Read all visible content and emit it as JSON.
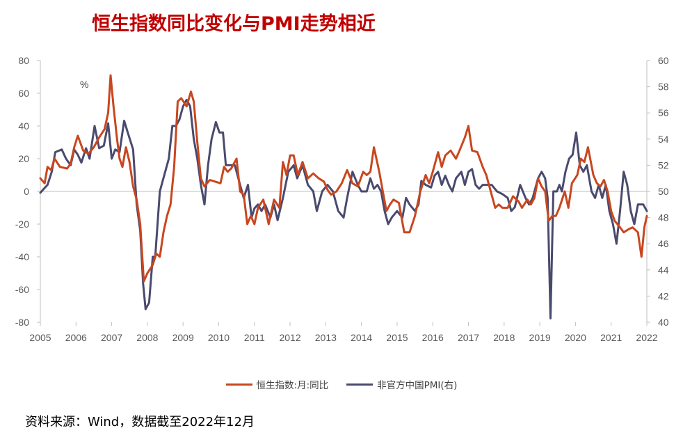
{
  "title": "恒生指数同比变化与PMI走势相近",
  "source": "资料来源：Wind，数据截至2022年12月",
  "colors": {
    "hsi": "#c9461e",
    "pmi": "#4a4a6e",
    "axis": "#bfbfbf",
    "title": "#c00000"
  },
  "chart_data": {
    "type": "line",
    "title": "恒生指数同比变化与PMI走势相近",
    "left_unit": "%",
    "y_left": {
      "range": [
        -80,
        80
      ],
      "ticks": [
        "80",
        "60",
        "40",
        "20",
        "0",
        "-20",
        "-40",
        "-60",
        "-80"
      ]
    },
    "y_right": {
      "range": [
        40,
        60
      ],
      "ticks": [
        "60",
        "58",
        "56",
        "54",
        "52",
        "50",
        "48",
        "46",
        "44",
        "42",
        "40"
      ]
    },
    "x_ticks": [
      "2005",
      "2006",
      "2007",
      "2008",
      "2009",
      "2010",
      "2011",
      "2012",
      "2013",
      "2014",
      "2015",
      "2016",
      "2017",
      "2018",
      "2019",
      "2020",
      "2021",
      "2022"
    ],
    "x_range": [
      2005.0,
      2022.0
    ],
    "legend_position": "bottom",
    "grid": false,
    "series": [
      {
        "name": "恒生指数:月:同比",
        "axis": "left",
        "points": [
          [
            2005.0,
            8
          ],
          [
            2005.12,
            5
          ],
          [
            2005.2,
            15
          ],
          [
            2005.3,
            13
          ],
          [
            2005.4,
            20
          ],
          [
            2005.55,
            15
          ],
          [
            2005.75,
            14
          ],
          [
            2005.85,
            17
          ],
          [
            2005.95,
            27
          ],
          [
            2006.05,
            34
          ],
          [
            2006.2,
            25
          ],
          [
            2006.35,
            23
          ],
          [
            2006.5,
            27
          ],
          [
            2006.65,
            33
          ],
          [
            2006.8,
            38
          ],
          [
            2006.9,
            48
          ],
          [
            2006.97,
            71
          ],
          [
            2007.05,
            52
          ],
          [
            2007.15,
            32
          ],
          [
            2007.22,
            20
          ],
          [
            2007.3,
            15
          ],
          [
            2007.4,
            27
          ],
          [
            2007.5,
            18
          ],
          [
            2007.6,
            3
          ],
          [
            2007.7,
            -5
          ],
          [
            2007.8,
            -20
          ],
          [
            2007.9,
            -55
          ],
          [
            2008.0,
            -50
          ],
          [
            2008.15,
            -45
          ],
          [
            2008.25,
            -38
          ],
          [
            2008.35,
            -40
          ],
          [
            2008.45,
            -25
          ],
          [
            2008.55,
            -15
          ],
          [
            2008.65,
            -8
          ],
          [
            2008.75,
            15
          ],
          [
            2008.85,
            55
          ],
          [
            2008.95,
            57
          ],
          [
            2009.1,
            52
          ],
          [
            2009.22,
            61
          ],
          [
            2009.3,
            55
          ],
          [
            2009.4,
            30
          ],
          [
            2009.5,
            8
          ],
          [
            2009.6,
            3
          ],
          [
            2009.75,
            7
          ],
          [
            2009.9,
            6
          ],
          [
            2010.05,
            5
          ],
          [
            2010.15,
            15
          ],
          [
            2010.25,
            12
          ],
          [
            2010.35,
            14
          ],
          [
            2010.5,
            20
          ],
          [
            2010.6,
            0
          ],
          [
            2010.7,
            -2
          ],
          [
            2010.8,
            -20
          ],
          [
            2010.9,
            -15
          ],
          [
            2011.0,
            -20
          ],
          [
            2011.1,
            -10
          ],
          [
            2011.25,
            -5
          ],
          [
            2011.4,
            -20
          ],
          [
            2011.55,
            -5
          ],
          [
            2011.7,
            -10
          ],
          [
            2011.8,
            18
          ],
          [
            2011.9,
            10
          ],
          [
            2012.0,
            22
          ],
          [
            2012.1,
            22
          ],
          [
            2012.22,
            10
          ],
          [
            2012.35,
            18
          ],
          [
            2012.5,
            8
          ],
          [
            2012.65,
            11
          ],
          [
            2012.8,
            8
          ],
          [
            2012.95,
            6
          ],
          [
            2013.05,
            1
          ],
          [
            2013.15,
            -2
          ],
          [
            2013.3,
            0
          ],
          [
            2013.45,
            5
          ],
          [
            2013.6,
            13
          ],
          [
            2013.75,
            5
          ],
          [
            2013.9,
            3
          ],
          [
            2014.05,
            12
          ],
          [
            2014.15,
            10
          ],
          [
            2014.25,
            12
          ],
          [
            2014.35,
            27
          ],
          [
            2014.5,
            12
          ],
          [
            2014.6,
            0
          ],
          [
            2014.7,
            -12
          ],
          [
            2014.8,
            -8
          ],
          [
            2014.9,
            -5
          ],
          [
            2015.05,
            -7
          ],
          [
            2015.2,
            -25
          ],
          [
            2015.35,
            -25
          ],
          [
            2015.5,
            -15
          ],
          [
            2015.65,
            0
          ],
          [
            2015.8,
            10
          ],
          [
            2015.9,
            5
          ],
          [
            2016.0,
            12
          ],
          [
            2016.15,
            24
          ],
          [
            2016.25,
            15
          ],
          [
            2016.35,
            22
          ],
          [
            2016.5,
            25
          ],
          [
            2016.65,
            20
          ],
          [
            2016.75,
            25
          ],
          [
            2016.9,
            33
          ],
          [
            2017.0,
            40
          ],
          [
            2017.1,
            25
          ],
          [
            2017.25,
            24
          ],
          [
            2017.4,
            15
          ],
          [
            2017.5,
            10
          ],
          [
            2017.6,
            2
          ],
          [
            2017.75,
            -10
          ],
          [
            2017.85,
            -8
          ],
          [
            2017.95,
            -10
          ],
          [
            2018.1,
            -10
          ],
          [
            2018.25,
            -3
          ],
          [
            2018.4,
            -6
          ],
          [
            2018.5,
            -10
          ],
          [
            2018.65,
            -5
          ],
          [
            2018.75,
            -8
          ],
          [
            2018.85,
            -4
          ],
          [
            2018.95,
            8
          ],
          [
            2019.05,
            3
          ],
          [
            2019.15,
            0
          ],
          [
            2019.25,
            -18
          ],
          [
            2019.35,
            -15
          ],
          [
            2019.45,
            -15
          ],
          [
            2019.55,
            -10
          ],
          [
            2019.7,
            0
          ],
          [
            2019.8,
            -10
          ],
          [
            2019.9,
            5
          ],
          [
            2020.05,
            10
          ],
          [
            2020.15,
            20
          ],
          [
            2020.25,
            18
          ],
          [
            2020.35,
            27
          ],
          [
            2020.5,
            10
          ],
          [
            2020.6,
            5
          ],
          [
            2020.7,
            3
          ],
          [
            2020.8,
            7
          ],
          [
            2020.9,
            0
          ],
          [
            2021.0,
            -12
          ],
          [
            2021.1,
            -18
          ],
          [
            2021.25,
            -22
          ],
          [
            2021.35,
            -25
          ],
          [
            2021.5,
            -23
          ],
          [
            2021.6,
            -22
          ],
          [
            2021.75,
            -25
          ],
          [
            2021.85,
            -40
          ],
          [
            2021.93,
            -22
          ],
          [
            2022.0,
            -15
          ]
        ]
      },
      {
        "name": "非官方中国PMI(右)",
        "axis": "right",
        "points": [
          [
            2005.0,
            49.9
          ],
          [
            2005.1,
            50.2
          ],
          [
            2005.2,
            50.5
          ],
          [
            2005.32,
            51.5
          ],
          [
            2005.42,
            53.0
          ],
          [
            2005.6,
            53.2
          ],
          [
            2005.72,
            52.5
          ],
          [
            2005.85,
            52.0
          ],
          [
            2005.95,
            53.2
          ],
          [
            2006.05,
            52.8
          ],
          [
            2006.15,
            52.2
          ],
          [
            2006.28,
            53.3
          ],
          [
            2006.38,
            52.5
          ],
          [
            2006.52,
            55.0
          ],
          [
            2006.65,
            53.3
          ],
          [
            2006.78,
            53.5
          ],
          [
            2006.9,
            55.2
          ],
          [
            2007.0,
            52.5
          ],
          [
            2007.1,
            53.2
          ],
          [
            2007.22,
            53.0
          ],
          [
            2007.35,
            55.4
          ],
          [
            2007.45,
            54.5
          ],
          [
            2007.6,
            53.2
          ],
          [
            2007.7,
            49.0
          ],
          [
            2007.8,
            47.0
          ],
          [
            2007.88,
            43.0
          ],
          [
            2007.95,
            41.0
          ],
          [
            2008.05,
            41.5
          ],
          [
            2008.15,
            45.0
          ],
          [
            2008.22,
            45.0
          ],
          [
            2008.35,
            50.0
          ],
          [
            2008.5,
            51.5
          ],
          [
            2008.6,
            52.5
          ],
          [
            2008.7,
            55.0
          ],
          [
            2008.8,
            55.0
          ],
          [
            2008.9,
            55.5
          ],
          [
            2009.0,
            56.5
          ],
          [
            2009.1,
            57.0
          ],
          [
            2009.2,
            56.5
          ],
          [
            2009.3,
            54.0
          ],
          [
            2009.4,
            52.5
          ],
          [
            2009.5,
            50.5
          ],
          [
            2009.6,
            49.0
          ],
          [
            2009.7,
            52.0
          ],
          [
            2009.8,
            54.0
          ],
          [
            2009.92,
            55.3
          ],
          [
            2010.02,
            54.5
          ],
          [
            2010.12,
            54.5
          ],
          [
            2010.2,
            52.0
          ],
          [
            2010.3,
            52.0
          ],
          [
            2010.45,
            52.0
          ],
          [
            2010.6,
            50.5
          ],
          [
            2010.7,
            49.5
          ],
          [
            2010.82,
            50.5
          ],
          [
            2010.92,
            48.0
          ],
          [
            2011.0,
            48.7
          ],
          [
            2011.1,
            49.0
          ],
          [
            2011.2,
            48.5
          ],
          [
            2011.3,
            49.0
          ],
          [
            2011.45,
            48.0
          ],
          [
            2011.55,
            49.0
          ],
          [
            2011.65,
            47.8
          ],
          [
            2011.8,
            49.5
          ],
          [
            2011.95,
            51.5
          ],
          [
            2012.1,
            52.0
          ],
          [
            2012.2,
            51.0
          ],
          [
            2012.35,
            52.0
          ],
          [
            2012.5,
            50.5
          ],
          [
            2012.65,
            50.0
          ],
          [
            2012.75,
            48.5
          ],
          [
            2012.9,
            50.0
          ],
          [
            2013.05,
            50.5
          ],
          [
            2013.2,
            50.0
          ],
          [
            2013.35,
            48.5
          ],
          [
            2013.5,
            48.0
          ],
          [
            2013.6,
            49.5
          ],
          [
            2013.75,
            51.5
          ],
          [
            2013.9,
            50.5
          ],
          [
            2014.0,
            50.0
          ],
          [
            2014.15,
            50.0
          ],
          [
            2014.25,
            51.0
          ],
          [
            2014.35,
            50.2
          ],
          [
            2014.45,
            50.5
          ],
          [
            2014.55,
            50.0
          ],
          [
            2014.65,
            48.5
          ],
          [
            2014.75,
            47.5
          ],
          [
            2014.85,
            48.0
          ],
          [
            2015.0,
            48.5
          ],
          [
            2015.15,
            48.0
          ],
          [
            2015.25,
            49.5
          ],
          [
            2015.35,
            49.0
          ],
          [
            2015.5,
            48.5
          ],
          [
            2015.6,
            49.0
          ],
          [
            2015.68,
            50.8
          ],
          [
            2015.8,
            50.5
          ],
          [
            2015.95,
            50.3
          ],
          [
            2016.05,
            51.2
          ],
          [
            2016.15,
            51.5
          ],
          [
            2016.25,
            50.5
          ],
          [
            2016.35,
            51.2
          ],
          [
            2016.45,
            50.5
          ],
          [
            2016.55,
            50.0
          ],
          [
            2016.65,
            51.0
          ],
          [
            2016.8,
            51.5
          ],
          [
            2016.9,
            50.5
          ],
          [
            2017.0,
            51.5
          ],
          [
            2017.1,
            51.7
          ],
          [
            2017.2,
            50.5
          ],
          [
            2017.3,
            50.2
          ],
          [
            2017.4,
            50.5
          ],
          [
            2017.5,
            50.5
          ],
          [
            2017.65,
            50.5
          ],
          [
            2017.8,
            50.0
          ],
          [
            2017.95,
            49.8
          ],
          [
            2018.1,
            49.5
          ],
          [
            2018.2,
            48.5
          ],
          [
            2018.3,
            48.8
          ],
          [
            2018.45,
            50.5
          ],
          [
            2018.6,
            49.5
          ],
          [
            2018.7,
            49.0
          ],
          [
            2018.8,
            49.5
          ],
          [
            2018.95,
            51.0
          ],
          [
            2019.05,
            51.5
          ],
          [
            2019.15,
            51.0
          ],
          [
            2019.22,
            49.5
          ],
          [
            2019.3,
            40.3
          ],
          [
            2019.38,
            50.0
          ],
          [
            2019.48,
            50.0
          ],
          [
            2019.55,
            50.5
          ],
          [
            2019.62,
            50.0
          ],
          [
            2019.72,
            51.5
          ],
          [
            2019.82,
            52.5
          ],
          [
            2019.92,
            52.8
          ],
          [
            2020.02,
            54.5
          ],
          [
            2020.12,
            52.0
          ],
          [
            2020.22,
            51.5
          ],
          [
            2020.32,
            52.0
          ],
          [
            2020.45,
            50.0
          ],
          [
            2020.55,
            49.5
          ],
          [
            2020.65,
            50.5
          ],
          [
            2020.75,
            49.5
          ],
          [
            2020.85,
            50.5
          ],
          [
            2020.95,
            48.5
          ],
          [
            2021.05,
            47.5
          ],
          [
            2021.15,
            46.0
          ],
          [
            2021.25,
            48.5
          ],
          [
            2021.35,
            51.5
          ],
          [
            2021.45,
            50.5
          ],
          [
            2021.55,
            48.5
          ],
          [
            2021.65,
            47.5
          ],
          [
            2021.75,
            49.0
          ],
          [
            2021.9,
            49.0
          ],
          [
            2022.0,
            48.5
          ]
        ]
      }
    ]
  },
  "legend": {
    "hsi_label": "恒生指数:月:同比",
    "pmi_label": "非官方中国PMI(右)"
  }
}
